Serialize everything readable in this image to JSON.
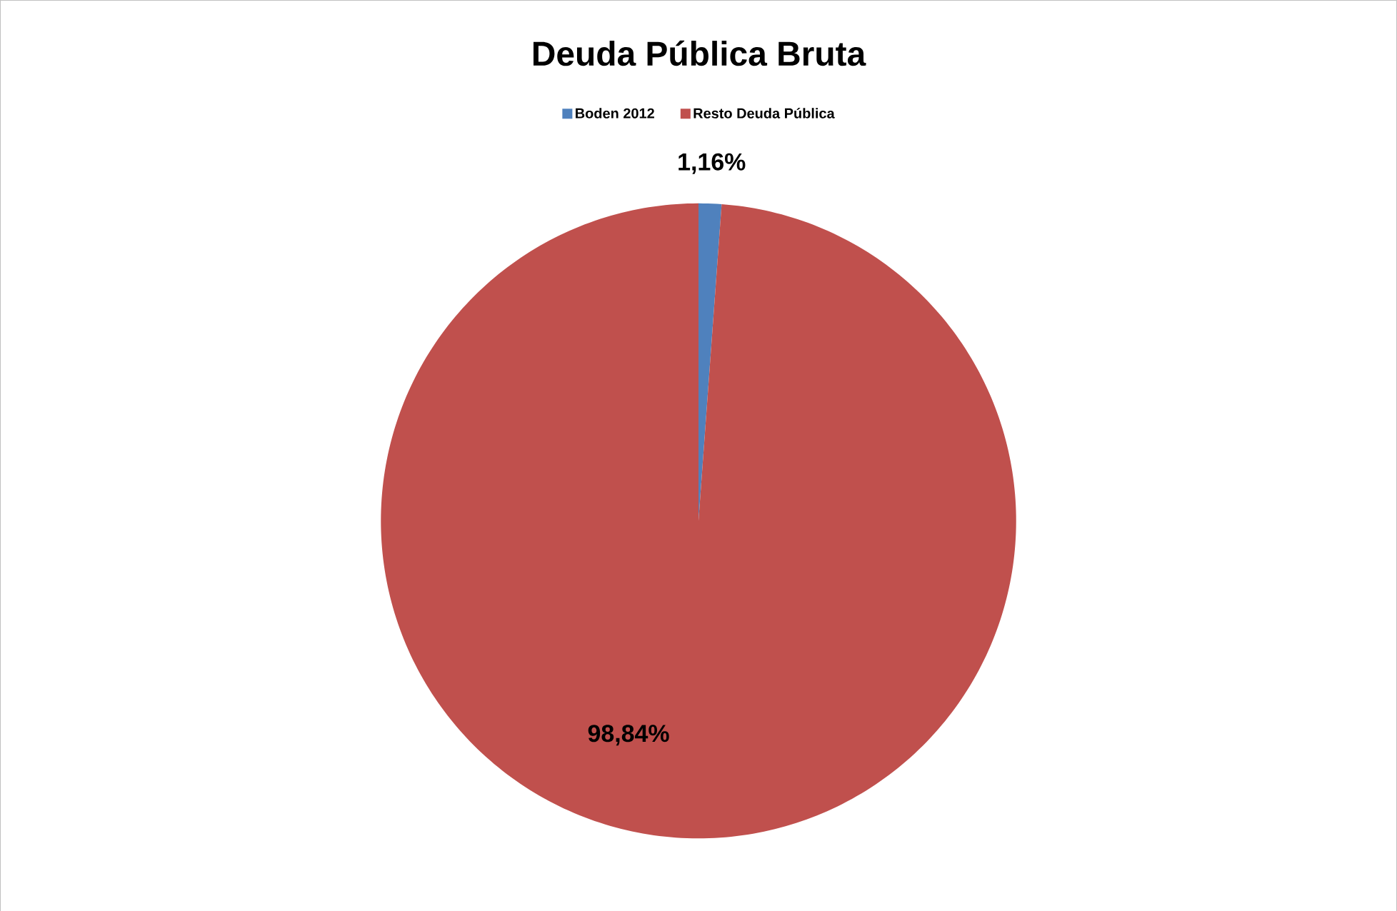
{
  "chart_data": {
    "type": "pie",
    "title": "Deuda Pública Bruta",
    "categories": [
      "Boden 2012",
      "Resto Deuda Pública"
    ],
    "values": [
      1.16,
      98.84
    ],
    "colors": [
      "#4f81bd",
      "#c0504d"
    ],
    "value_labels": [
      "1,16%",
      "98,84%"
    ],
    "legend": "top"
  }
}
